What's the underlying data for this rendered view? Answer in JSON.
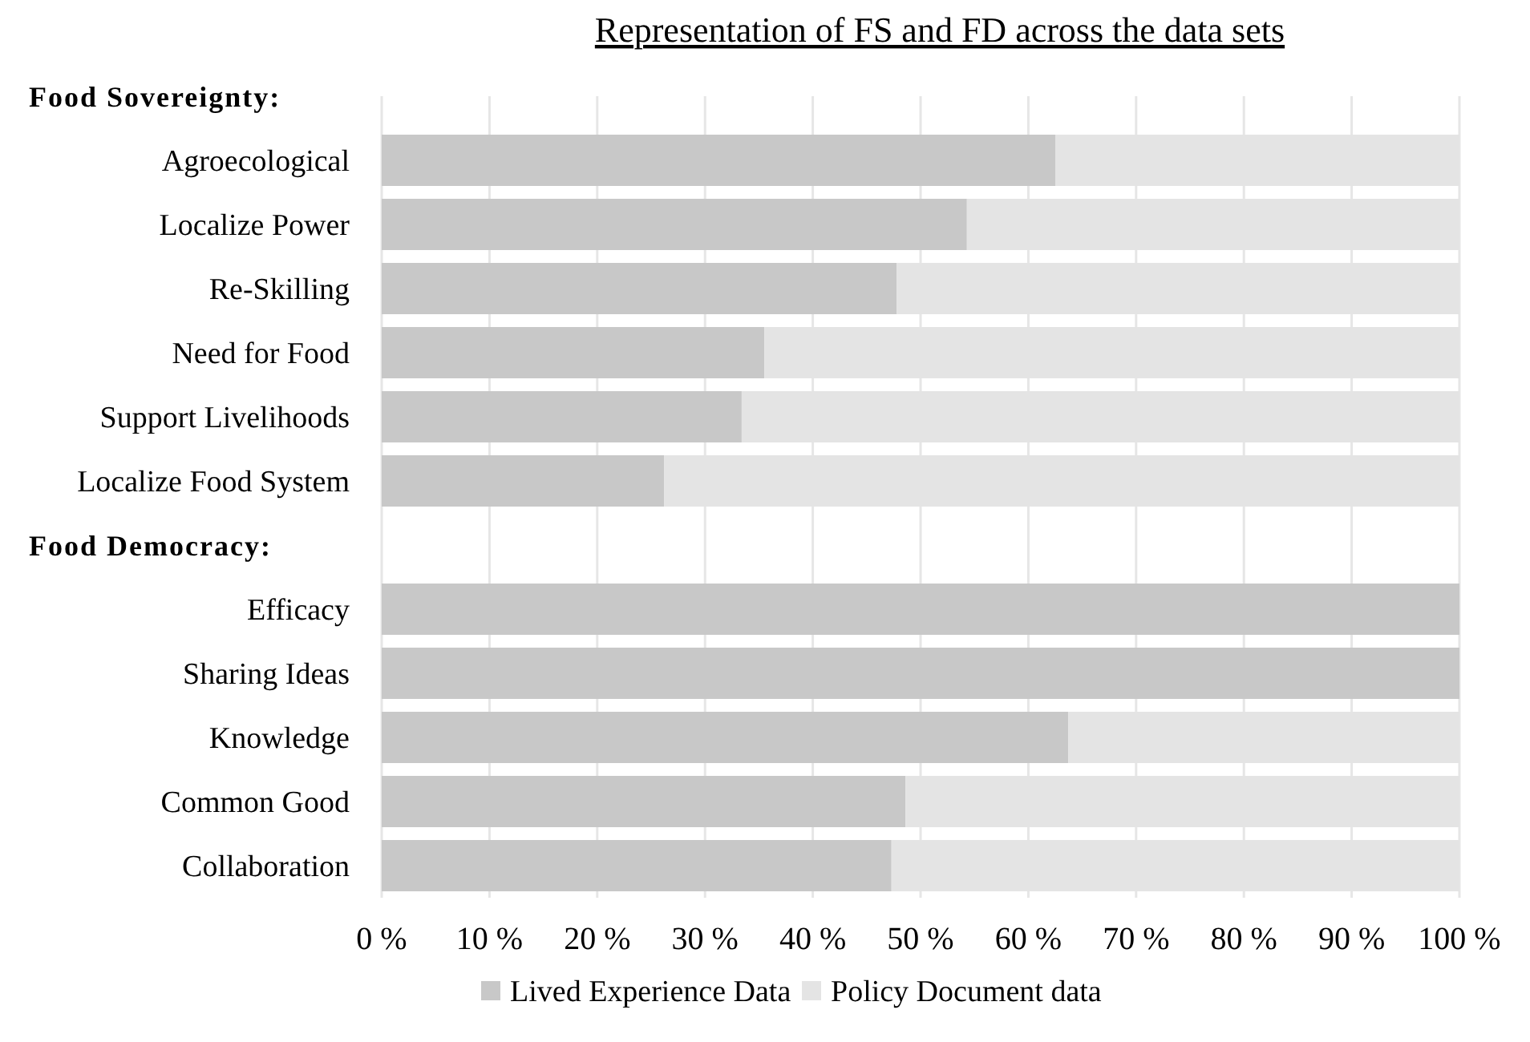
{
  "chart_data": {
    "type": "bar",
    "orientation": "horizontal",
    "stacked": true,
    "title": "Representation of FS and FD across the data sets",
    "annotations": [
      "Food Sovereignty:",
      "Food Democracy:"
    ],
    "categories": [
      null,
      "Agroecological",
      "Localize Power",
      "Re-Skilling",
      "Need for Food",
      "Support Livelihoods",
      "Localize Food System",
      null,
      "Efficacy",
      "Sharing Ideas",
      "Knowledge",
      "Common Good",
      "Collaboration"
    ],
    "series": [
      {
        "name": "Lived Experience Data",
        "color": "#c8c8c8",
        "values": [
          null,
          62.5,
          54.3,
          47.8,
          35.5,
          33.4,
          26.2,
          null,
          100,
          100,
          63.7,
          48.6,
          47.3
        ]
      },
      {
        "name": "Policy Document data",
        "color": "#e4e4e4",
        "values": [
          null,
          37.5,
          45.7,
          52.2,
          64.5,
          66.6,
          73.8,
          null,
          0,
          0,
          36.3,
          51.4,
          52.7
        ]
      }
    ],
    "xlim": [
      0,
      100
    ],
    "xticks": [
      {
        "value": 0,
        "label": "0 %"
      },
      {
        "value": 10,
        "label": "10 %"
      },
      {
        "value": 20,
        "label": "20 %"
      },
      {
        "value": 30,
        "label": "30 %"
      },
      {
        "value": 40,
        "label": "40 %"
      },
      {
        "value": 50,
        "label": "50 %"
      },
      {
        "value": 60,
        "label": "60 %"
      },
      {
        "value": 70,
        "label": "70 %"
      },
      {
        "value": 80,
        "label": "80 %"
      },
      {
        "value": 90,
        "label": "90 %"
      },
      {
        "value": 100,
        "label": "100 %"
      }
    ],
    "grid": "x",
    "legend": "bottom"
  }
}
